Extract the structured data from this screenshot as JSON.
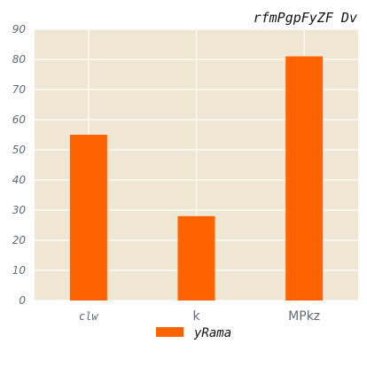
{
  "chart_data": {
    "type": "bar",
    "title": "rfmPgpFyZF Dv",
    "xlabel": "",
    "ylabel": "",
    "categories": [
      "clw",
      "k",
      "MPkz"
    ],
    "series": [
      {
        "name": "yRama",
        "values": [
          55,
          28,
          81
        ]
      }
    ],
    "ylim": [
      0,
      90
    ],
    "yticks": [
      0,
      10,
      20,
      30,
      40,
      50,
      60,
      70,
      80,
      90
    ],
    "grid": true,
    "legend_position": "bottom-center",
    "colors": {
      "bar": "#ff6200",
      "plot_background": "#efe6d4",
      "grid": "#ffffff",
      "axis_text": "#5b6b7a",
      "title_text": "#111111"
    }
  }
}
